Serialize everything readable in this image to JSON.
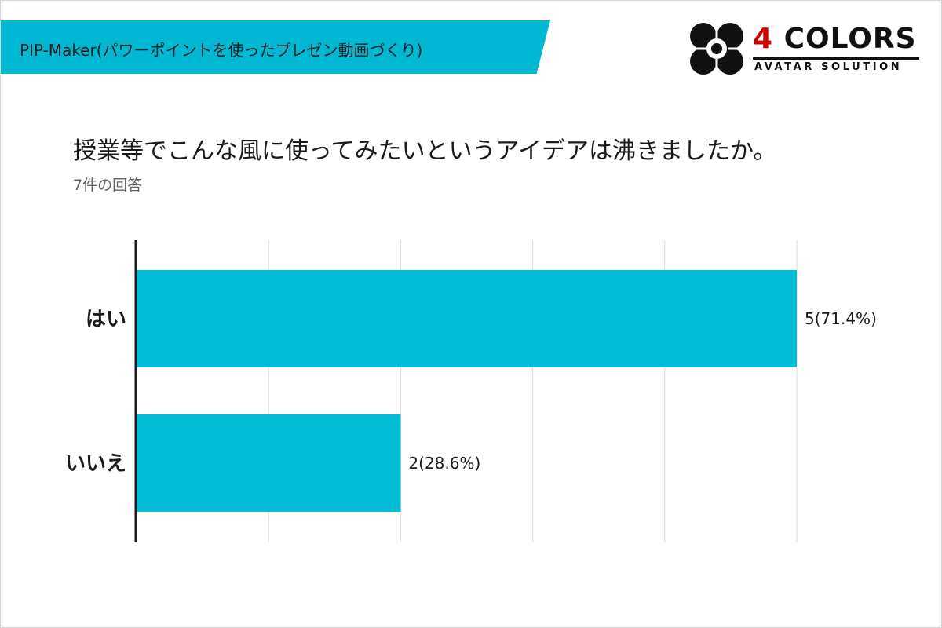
{
  "header": {
    "title": "PIP-Maker(パワーポイントを使ったプレゼン動画づくり)",
    "accent_color": "#00b8d4"
  },
  "logo": {
    "name": "4 COLORS",
    "tagline": "AVATAR SOLUTION",
    "accent_color": "#cc0000",
    "icon": "four-circles-logo-icon"
  },
  "survey": {
    "question": "授業等でこんな風に使ってみたいというアイデアは沸きましたか。",
    "response_count": "7件の回答"
  },
  "chart_data": {
    "type": "bar",
    "orientation": "horizontal",
    "categories": [
      "はい",
      "いいえ"
    ],
    "values": [
      5,
      2
    ],
    "value_labels": [
      "5(71.4%)",
      "2(28.6%)"
    ],
    "xlim": [
      0,
      5
    ],
    "gridlines": [
      1,
      2,
      3,
      4,
      5
    ],
    "grid": true,
    "bar_color": "#00bcd4"
  }
}
